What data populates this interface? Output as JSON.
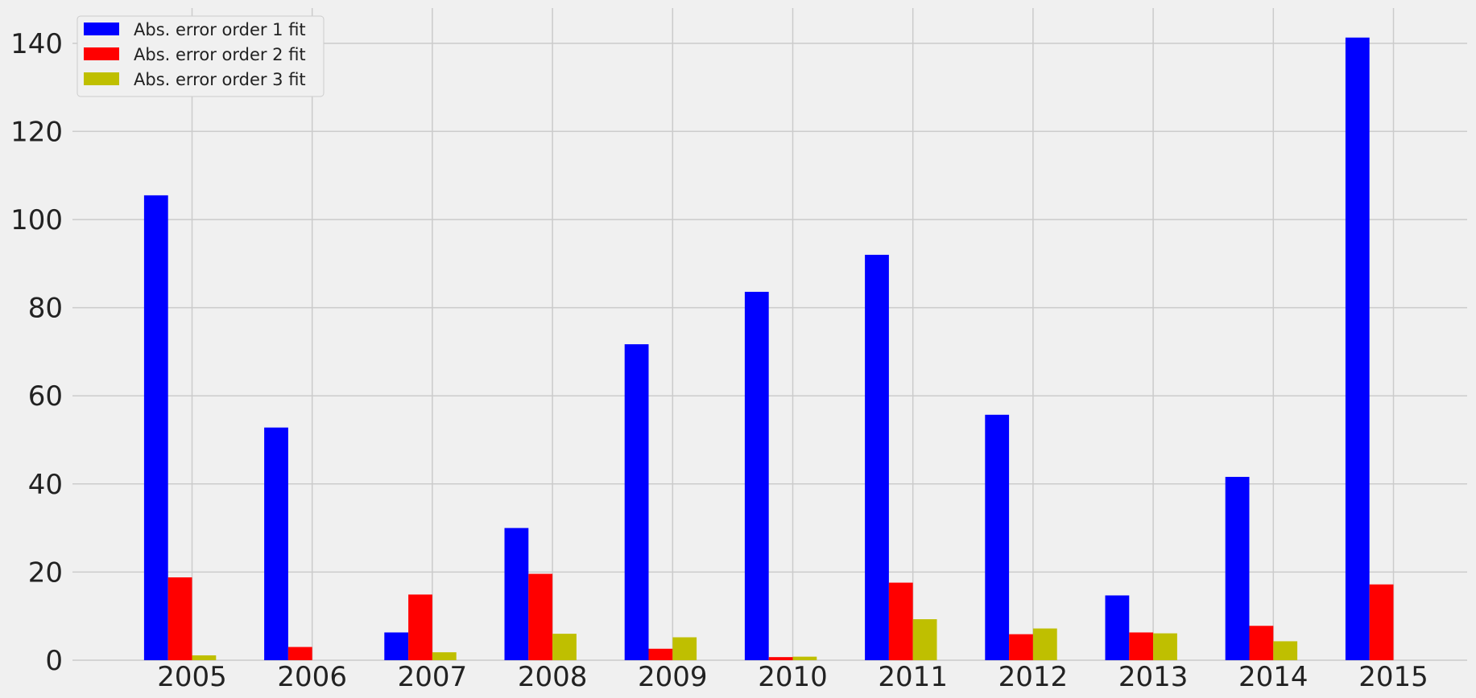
{
  "chart_data": {
    "type": "bar",
    "title": "",
    "xlabel": "",
    "ylabel": "",
    "categories": [
      "2005",
      "2006",
      "2007",
      "2008",
      "2009",
      "2010",
      "2011",
      "2012",
      "2013",
      "2014",
      "2015"
    ],
    "series": [
      {
        "name": "Abs. error order 1 fit",
        "color": "#0000ff",
        "values": [
          105.5,
          52.8,
          6.3,
          30.0,
          71.7,
          83.6,
          92.0,
          55.7,
          14.7,
          41.6,
          141.3
        ]
      },
      {
        "name": "Abs. error order 2 fit",
        "color": "#ff0000",
        "values": [
          18.8,
          3.0,
          14.9,
          19.6,
          2.6,
          0.7,
          17.6,
          5.9,
          6.3,
          7.8,
          17.2
        ]
      },
      {
        "name": "Abs. error order 3 fit",
        "color": "#bfbf00",
        "values": [
          1.1,
          0,
          1.8,
          6.0,
          5.2,
          0.8,
          9.3,
          7.2,
          6.1,
          4.3,
          0
        ]
      }
    ],
    "ylim": [
      0,
      148
    ],
    "yticks": [
      0,
      20,
      40,
      60,
      80,
      100,
      120,
      140
    ],
    "grid": true,
    "legend_position": "top-left"
  }
}
